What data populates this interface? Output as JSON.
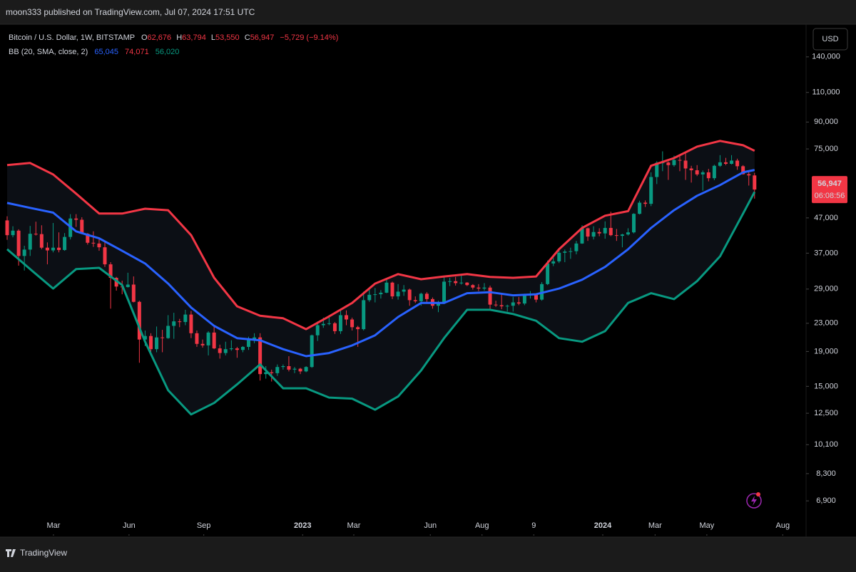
{
  "header": {
    "publisher": "moon333 published on TradingView.com, Jul 07, 2024 17:51 UTC",
    "brand": "TradingView"
  },
  "legend": {
    "symbol": "Bitcoin / U.S. Dollar, 1W, BITSTAMP",
    "fields": [
      {
        "key": "O",
        "value": "62,676"
      },
      {
        "key": "H",
        "value": "63,794"
      },
      {
        "key": "L",
        "value": "53,550"
      },
      {
        "key": "C",
        "value": "56,947"
      }
    ],
    "change": "−5,729 (−9.14%)",
    "indicator": "BB (20, SMA, close, 2)",
    "indicator_values": [
      "65,045",
      "74,071",
      "56,020"
    ]
  },
  "currency": "USD",
  "last_price_label": "56,947",
  "countdown": "06:08:56",
  "chart_data": {
    "type": "candlestick",
    "log_scale": true,
    "grid": false,
    "up_color": "#089981",
    "down_color": "#f23645",
    "xlim": [
      -1.24,
      138.96
    ],
    "ylim": [
      5450,
      173000
    ],
    "xticks": [
      {
        "value": 8.06,
        "label": "Mar"
      },
      {
        "value": 21.2,
        "label": "Jun"
      },
      {
        "value": 34.2,
        "label": "Sep"
      },
      {
        "value": 51.4,
        "label": "2023",
        "major": true
      },
      {
        "value": 60.3,
        "label": "Mar"
      },
      {
        "value": 73.6,
        "label": "Jun"
      },
      {
        "value": 82.6,
        "label": "Aug"
      },
      {
        "value": 91.6,
        "label": "9"
      },
      {
        "value": 103.6,
        "label": "2024",
        "major": true
      },
      {
        "value": 112.7,
        "label": "Mar"
      },
      {
        "value": 121.7,
        "label": "May"
      },
      {
        "value": 134.9,
        "label": "Aug"
      }
    ],
    "yticks": [
      {
        "value": 6900,
        "label": "6,900"
      },
      {
        "value": 8300,
        "label": "8,300"
      },
      {
        "value": 10100,
        "label": "10,100"
      },
      {
        "value": 12500,
        "label": "12,500"
      },
      {
        "value": 15000,
        "label": "15,000"
      },
      {
        "value": 19000,
        "label": "19,000"
      },
      {
        "value": 23000,
        "label": "23,000"
      },
      {
        "value": 29000,
        "label": "29,000"
      },
      {
        "value": 37000,
        "label": "37,000"
      },
      {
        "value": 47000,
        "label": "47,000"
      },
      {
        "value": 75000,
        "label": "75,000"
      },
      {
        "value": 90000,
        "label": "90,000"
      },
      {
        "value": 110000,
        "label": "110,000"
      },
      {
        "value": 140000,
        "label": "140,000"
      }
    ],
    "open": [
      46200,
      41800,
      43100,
      36300,
      37900,
      42200,
      42100,
      38400,
      37700,
      38400,
      37800,
      41300,
      46800,
      46400,
      42200,
      39700,
      39500,
      38500,
      34300,
      31300,
      29500,
      29400,
      29900,
      26600,
      20600,
      21100,
      19300,
      20900,
      20800,
      22600,
      23300,
      23200,
      24400,
      21500,
      20000,
      19800,
      21600,
      19400,
      18800,
      19300,
      19400,
      19200,
      19600,
      20600,
      20900,
      16300,
      16500,
      16400,
      17100,
      17200,
      16800,
      16900,
      16600,
      17100,
      21200,
      22700,
      22900,
      23000,
      21800,
      24300,
      23600,
      22400,
      22100,
      26900,
      27900,
      28000,
      28300,
      30300,
      27600,
      28500,
      28900,
      26900,
      26700,
      28100,
      27100,
      25900,
      26300,
      30500,
      30600,
      30200,
      30300,
      29800,
      29300,
      29100,
      29300,
      26100,
      26000,
      25800,
      25900,
      26500,
      26300,
      27900,
      28000,
      27000,
      30000,
      34500,
      35000,
      37100,
      37400,
      37500,
      39500,
      43800,
      41400,
      42700,
      42300,
      43900,
      41800,
      41600,
      42000,
      42600,
      48300,
      52100,
      51700,
      62000,
      68300,
      68400,
      67200,
      69600,
      69300,
      65700,
      64900,
      63100,
      64000,
      61500,
      66900,
      68500,
      67800,
      69300,
      66700,
      63200,
      62676
    ],
    "high": [
      47500,
      44400,
      43500,
      38900,
      44500,
      45800,
      44700,
      39800,
      45400,
      42600,
      42400,
      48200,
      48200,
      47200,
      42400,
      42900,
      40800,
      40000,
      34800,
      31500,
      30700,
      32400,
      31600,
      26800,
      21900,
      21500,
      22500,
      22000,
      24300,
      24700,
      23700,
      25200,
      25000,
      21900,
      20600,
      21800,
      22700,
      19900,
      20300,
      20500,
      19600,
      19700,
      21000,
      21500,
      21500,
      17200,
      16800,
      17400,
      17400,
      18400,
      17100,
      17000,
      17200,
      21300,
      23300,
      23900,
      24300,
      23200,
      25300,
      25100,
      23900,
      22600,
      28500,
      29200,
      29200,
      28800,
      31000,
      30500,
      30000,
      29800,
      29100,
      27600,
      28300,
      28400,
      27400,
      26800,
      31400,
      31300,
      31500,
      31800,
      30400,
      30000,
      30000,
      30200,
      29700,
      26800,
      28100,
      26100,
      27500,
      27500,
      28100,
      28600,
      28100,
      30400,
      35200,
      35900,
      38000,
      37900,
      38400,
      40200,
      44700,
      44000,
      44400,
      43800,
      45900,
      49000,
      43600,
      42200,
      43800,
      48500,
      52800,
      52900,
      64000,
      69000,
      73800,
      68900,
      71600,
      71300,
      72800,
      66900,
      67200,
      64800,
      65500,
      67400,
      71900,
      70600,
      71900,
      70200,
      67200,
      64500,
      63794
    ],
    "low": [
      40500,
      41200,
      34000,
      32900,
      36300,
      41700,
      38000,
      34300,
      37200,
      37200,
      37600,
      40600,
      44200,
      42100,
      39200,
      38600,
      37600,
      33700,
      25400,
      28700,
      28000,
      29300,
      26500,
      17600,
      19700,
      18600,
      18900,
      18900,
      20700,
      20700,
      22400,
      22700,
      20800,
      19600,
      19500,
      18500,
      19300,
      18100,
      18500,
      19100,
      18200,
      18900,
      19200,
      20100,
      15600,
      15800,
      15500,
      16100,
      16800,
      16600,
      16400,
      16300,
      16500,
      17000,
      20400,
      22300,
      22700,
      21400,
      21400,
      22700,
      21900,
      19600,
      21900,
      26600,
      26500,
      27200,
      28200,
      27100,
      27000,
      27700,
      25900,
      26400,
      25900,
      26600,
      25400,
      24800,
      26200,
      29600,
      29700,
      29900,
      29600,
      28900,
      28600,
      28700,
      25200,
      25700,
      25300,
      24900,
      24900,
      26000,
      26000,
      27200,
      26500,
      26800,
      29800,
      33900,
      34600,
      34800,
      35600,
      36700,
      39400,
      40200,
      40600,
      41500,
      40800,
      41500,
      40200,
      38500,
      41700,
      42300,
      48100,
      50600,
      50900,
      59100,
      64500,
      60800,
      66500,
      64500,
      60800,
      59700,
      62400,
      56500,
      60200,
      60700,
      66400,
      67200,
      67500,
      65100,
      63000,
      58500,
      53550
    ],
    "close": [
      41800,
      43100,
      36300,
      37900,
      42200,
      42100,
      38400,
      37700,
      38400,
      37800,
      41300,
      46800,
      46400,
      42200,
      39700,
      39500,
      38500,
      34300,
      31300,
      29500,
      29400,
      29900,
      26600,
      20600,
      21100,
      19300,
      20900,
      20800,
      22600,
      23300,
      23200,
      24400,
      21500,
      20000,
      19800,
      21600,
      19400,
      18800,
      19300,
      19400,
      19200,
      19600,
      20600,
      20900,
      16300,
      16500,
      16400,
      17100,
      17200,
      16800,
      16900,
      16600,
      17100,
      21200,
      22700,
      22900,
      23000,
      21800,
      24300,
      23600,
      22400,
      22100,
      26900,
      27900,
      28000,
      28300,
      30300,
      27600,
      28500,
      28900,
      26900,
      26700,
      28100,
      27100,
      25900,
      26300,
      30500,
      30600,
      30200,
      30300,
      29800,
      29300,
      29100,
      29300,
      26100,
      26000,
      25800,
      25900,
      26500,
      26300,
      27900,
      28000,
      27000,
      30000,
      34500,
      35000,
      37100,
      37400,
      37500,
      39500,
      43800,
      41400,
      42700,
      42300,
      43900,
      41800,
      41600,
      42000,
      42600,
      48300,
      52100,
      51700,
      62000,
      68300,
      68400,
      67200,
      69600,
      69300,
      65700,
      64900,
      63100,
      64000,
      61500,
      66900,
      68500,
      67800,
      69300,
      66700,
      63200,
      62676,
      56947
    ],
    "overlays": [
      {
        "color": "#f23645",
        "x": [
          0,
          4,
          8,
          12,
          16,
          20,
          24,
          28,
          32,
          36,
          40,
          44,
          48,
          52,
          56,
          60,
          64,
          68,
          72,
          76,
          80,
          84,
          88,
          92,
          96,
          100,
          104,
          108,
          112,
          116,
          120,
          124,
          128,
          130
        ],
        "values": [
          67200,
          68200,
          63100,
          55400,
          48400,
          48400,
          50000,
          49500,
          41800,
          31300,
          25800,
          24200,
          23800,
          22100,
          24100,
          26400,
          30100,
          32100,
          31000,
          31600,
          32100,
          31500,
          31300,
          31600,
          38000,
          43900,
          47700,
          49200,
          66900,
          70500,
          76200,
          79200,
          76900,
          74071
        ]
      },
      {
        "color": "#2962ff",
        "x": [
          0,
          4,
          8,
          12,
          16,
          20,
          24,
          28,
          32,
          36,
          40,
          44,
          48,
          52,
          56,
          60,
          64,
          68,
          72,
          76,
          80,
          84,
          88,
          92,
          96,
          100,
          104,
          108,
          112,
          116,
          120,
          124,
          128,
          130
        ],
        "values": [
          52000,
          50300,
          48700,
          42900,
          40900,
          37600,
          34500,
          30100,
          25600,
          22600,
          20800,
          20500,
          19300,
          18400,
          18800,
          19800,
          21200,
          24000,
          26400,
          26400,
          28200,
          28400,
          27800,
          28000,
          29100,
          30900,
          33700,
          38000,
          43900,
          49500,
          54600,
          58700,
          64000,
          65045
        ]
      },
      {
        "color": "#089981",
        "x": [
          0,
          4,
          8,
          12,
          16,
          20,
          24,
          28,
          32,
          36,
          40,
          44,
          48,
          52,
          56,
          60,
          64,
          68,
          72,
          76,
          80,
          84,
          88,
          92,
          96,
          100,
          104,
          108,
          112,
          116,
          120,
          124,
          128,
          130
        ],
        "values": [
          38000,
          33200,
          29100,
          33200,
          33500,
          29800,
          20300,
          14600,
          12400,
          13400,
          15200,
          17400,
          14800,
          14800,
          13900,
          13800,
          12800,
          14000,
          16700,
          20800,
          25200,
          25200,
          24500,
          23400,
          20800,
          20300,
          21800,
          26400,
          28200,
          27100,
          30600,
          36200,
          48400,
          56020
        ]
      }
    ]
  }
}
